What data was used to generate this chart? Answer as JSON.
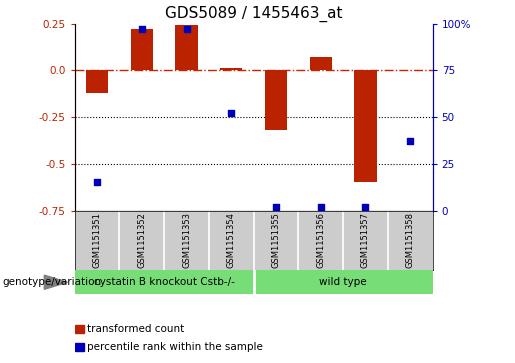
{
  "title": "GDS5089 / 1455463_at",
  "samples": [
    "GSM1151351",
    "GSM1151352",
    "GSM1151353",
    "GSM1151354",
    "GSM1151355",
    "GSM1151356",
    "GSM1151357",
    "GSM1151358"
  ],
  "red_bars": [
    -0.12,
    0.22,
    0.24,
    0.01,
    -0.32,
    0.07,
    -0.6,
    0.0
  ],
  "blue_dots": [
    15,
    97,
    97,
    52,
    2,
    2,
    2,
    37
  ],
  "ylim_left": [
    -0.75,
    0.25
  ],
  "ylim_right": [
    0,
    100
  ],
  "yticks_left": [
    -0.75,
    -0.5,
    -0.25,
    0.0,
    0.25
  ],
  "yticks_right": [
    0,
    25,
    50,
    75,
    100
  ],
  "ytick_labels_right": [
    "0",
    "25",
    "50",
    "75",
    "100%"
  ],
  "hline_y": 0.0,
  "dotted_lines": [
    -0.25,
    -0.5
  ],
  "group1_label": "cystatin B knockout Cstb-/-",
  "group1_samples": 4,
  "group2_label": "wild type",
  "group2_samples": 4,
  "genotype_label": "genotype/variation",
  "legend_red": "transformed count",
  "legend_blue": "percentile rank within the sample",
  "bar_color": "#bb2200",
  "dot_color": "#0000bb",
  "hline_color": "#cc2200",
  "dotted_color": "#000000",
  "group_color": "#77dd77",
  "sample_bg_color": "#cccccc",
  "bg_color": "#ffffff",
  "plot_bg": "#ffffff",
  "bar_width": 0.5,
  "title_fontsize": 11,
  "tick_fontsize": 7.5,
  "label_fontsize": 8
}
